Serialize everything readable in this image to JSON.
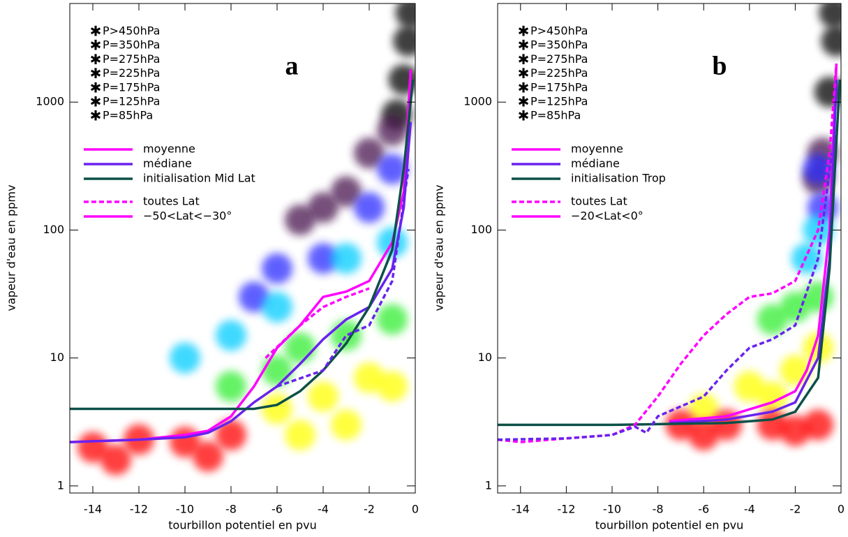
{
  "chart_data": [
    {
      "type": "scatter",
      "panel_label": "a",
      "xlabel": "tourbillon potentiel en pvu",
      "ylabel": "vapeur d'eau en ppmv",
      "log_y": true,
      "xlim": [
        -15,
        0
      ],
      "ylim": [
        0.88,
        5900
      ],
      "xticks": [
        -14,
        -12,
        -10,
        -8,
        -6,
        -4,
        -2,
        0
      ],
      "yticks": [
        1,
        10,
        100,
        1000
      ],
      "series": [
        {
          "name": "P>450hPa",
          "color": "#000000",
          "x": [
            -0.3,
            -0.5,
            -0.2,
            -0.8
          ],
          "values": [
            3000,
            1500,
            5000,
            800
          ]
        },
        {
          "name": "P=350hPa",
          "color": "#4a1450",
          "x": [
            -4,
            -3,
            -5,
            -2,
            -1
          ],
          "values": [
            150,
            200,
            120,
            400,
            600
          ]
        },
        {
          "name": "P=275hPa",
          "color": "#2a2aff",
          "x": [
            -6,
            -4,
            -2,
            -7,
            -1
          ],
          "values": [
            50,
            60,
            150,
            30,
            300
          ]
        },
        {
          "name": "P=225hPa",
          "color": "#00ccff",
          "x": [
            -8,
            -6,
            -3,
            -1,
            -10
          ],
          "values": [
            15,
            25,
            60,
            80,
            10
          ]
        },
        {
          "name": "P=175hPa",
          "color": "#33ee33",
          "x": [
            -8,
            -5,
            -3,
            -1,
            -6
          ],
          "values": [
            6,
            12,
            15,
            20,
            8
          ]
        },
        {
          "name": "P=125hPa",
          "color": "#ffff00",
          "x": [
            -6,
            -4,
            -2,
            -5,
            -3,
            -1
          ],
          "values": [
            4,
            5,
            7,
            2.5,
            3,
            6
          ]
        },
        {
          "name": "P=85hPa",
          "color": "#ff0000",
          "x": [
            -14,
            -12,
            -10,
            -8,
            -13,
            -9
          ],
          "values": [
            2,
            2.3,
            2.2,
            2.5,
            1.6,
            1.7
          ]
        }
      ],
      "lines": [
        {
          "color": "#ff00ff",
          "dashed": false,
          "x": [
            -15,
            -12,
            -10,
            -9,
            -8,
            -7,
            -6,
            -5,
            -4,
            -3,
            -2,
            -1,
            -0.5,
            -0.2
          ],
          "values": [
            2.2,
            2.3,
            2.5,
            2.7,
            3.5,
            6,
            12,
            18,
            30,
            33,
            40,
            80,
            200,
            1800
          ]
        },
        {
          "color": "#6a22ee",
          "dashed": false,
          "x": [
            -15,
            -12,
            -10,
            -9,
            -8,
            -7,
            -6,
            -5,
            -4,
            -3,
            -2,
            -1,
            -0.5,
            -0.2
          ],
          "values": [
            2.2,
            2.3,
            2.4,
            2.6,
            3.2,
            4.5,
            6,
            9,
            14,
            20,
            25,
            50,
            150,
            700
          ]
        },
        {
          "color": "#0c5048",
          "dashed": false,
          "x": [
            -15,
            -7,
            -6,
            -5,
            -4,
            -3,
            -2,
            -1,
            -0.5,
            -0.1
          ],
          "values": [
            4,
            4,
            4.3,
            5.5,
            8,
            13,
            25,
            70,
            300,
            1500
          ]
        },
        {
          "color": "#ff00ff",
          "dashed": true,
          "x": [
            -6.5,
            -5,
            -4,
            -3,
            -2
          ],
          "values": [
            10,
            18,
            25,
            30,
            35
          ]
        },
        {
          "color": "#6a22ee",
          "dashed": true,
          "x": [
            -6,
            -4,
            -3,
            -2,
            -1,
            -0.3
          ],
          "values": [
            6,
            8,
            15,
            18,
            40,
            300
          ]
        }
      ],
      "legend_lines": [
        {
          "name": "moyenne",
          "color": "#ff00ff",
          "dashed": false
        },
        {
          "name": "médiane",
          "color": "#6a22ee",
          "dashed": false
        },
        {
          "name": "initialisation Mid Lat",
          "color": "#0c5048",
          "dashed": false
        },
        {
          "name": "toutes Lat",
          "color": "#ff00ff",
          "dashed": true
        },
        {
          "name": "−50<Lat<−30°",
          "color": "#ff00ff",
          "dashed": false
        }
      ]
    },
    {
      "type": "scatter",
      "panel_label": "b",
      "xlabel": "tourbillon potentiel en pvu",
      "ylabel": "vapeur d'eau en ppmv",
      "log_y": true,
      "xlim": [
        -15,
        0
      ],
      "ylim": [
        0.88,
        5900
      ],
      "xticks": [
        -14,
        -12,
        -10,
        -8,
        -6,
        -4,
        -2,
        0
      ],
      "yticks": [
        1,
        10,
        100,
        1000
      ],
      "series": [
        {
          "name": "P>450hPa",
          "color": "#000000",
          "x": [
            -0.2,
            -0.5,
            -0.3
          ],
          "values": [
            3000,
            1200,
            5000
          ]
        },
        {
          "name": "P=350hPa",
          "color": "#4a1450",
          "x": [
            -0.8,
            -1
          ],
          "values": [
            400,
            250
          ]
        },
        {
          "name": "P=275hPa",
          "color": "#2a2aff",
          "x": [
            -1,
            -0.8
          ],
          "values": [
            300,
            150
          ]
        },
        {
          "name": "P=225hPa",
          "color": "#00ccff",
          "x": [
            -1.5,
            -1
          ],
          "values": [
            60,
            100
          ]
        },
        {
          "name": "P=175hPa",
          "color": "#33ee33",
          "x": [
            -2,
            -3,
            -1
          ],
          "values": [
            25,
            20,
            30
          ]
        },
        {
          "name": "P=125hPa",
          "color": "#ffff00",
          "x": [
            -4,
            -2,
            -3,
            -1,
            -6
          ],
          "values": [
            6,
            8,
            5,
            12,
            4
          ]
        },
        {
          "name": "P=85hPa",
          "color": "#ff0000",
          "x": [
            -7,
            -5,
            -3,
            -1,
            -6,
            -2
          ],
          "values": [
            3,
            3,
            3,
            3,
            2.5,
            2.7
          ]
        }
      ],
      "lines": [
        {
          "color": "#ff00ff",
          "dashed": false,
          "x": [
            -7.5,
            -5,
            -3,
            -2,
            -1.5,
            -1,
            -0.5,
            -0.2
          ],
          "values": [
            3.2,
            3.5,
            4.5,
            5.5,
            8,
            15,
            100,
            2000
          ]
        },
        {
          "color": "#6a22ee",
          "dashed": false,
          "x": [
            -7.5,
            -5,
            -3,
            -2,
            -1,
            -0.5,
            -0.2
          ],
          "values": [
            3.1,
            3.3,
            3.8,
            4.5,
            10,
            60,
            1500
          ]
        },
        {
          "color": "#0c5048",
          "dashed": false,
          "x": [
            -15,
            -10,
            -5,
            -3,
            -2,
            -1,
            -0.5,
            -0.2,
            -0.05
          ],
          "values": [
            3,
            3,
            3.1,
            3.3,
            3.8,
            7,
            50,
            500,
            1500
          ]
        },
        {
          "color": "#ff00ff",
          "dashed": true,
          "x": [
            -15,
            -14,
            -12,
            -10,
            -9,
            -8,
            -7,
            -6,
            -5,
            -4,
            -3,
            -2,
            -1,
            -0.5,
            -0.2
          ],
          "values": [
            2.3,
            2.2,
            2.35,
            2.5,
            3,
            5,
            9,
            15,
            22,
            30,
            32,
            40,
            100,
            400,
            2000
          ]
        },
        {
          "color": "#6a22ee",
          "dashed": true,
          "x": [
            -15,
            -12,
            -10,
            -9,
            -8.5,
            -8,
            -6,
            -5,
            -4,
            -3,
            -2,
            -1,
            -0.4
          ],
          "values": [
            2.3,
            2.35,
            2.5,
            2.9,
            2.6,
            3.5,
            5,
            8,
            12,
            14,
            18,
            60,
            400
          ]
        }
      ],
      "legend_lines": [
        {
          "name": "moyenne",
          "color": "#ff00ff",
          "dashed": false
        },
        {
          "name": "médiane",
          "color": "#6a22ee",
          "dashed": false
        },
        {
          "name": "initialisation Trop",
          "color": "#0c5048",
          "dashed": false
        },
        {
          "name": "toutes Lat",
          "color": "#ff00ff",
          "dashed": true
        },
        {
          "name": "−20<Lat<0°",
          "color": "#ff00ff",
          "dashed": false
        }
      ]
    }
  ]
}
